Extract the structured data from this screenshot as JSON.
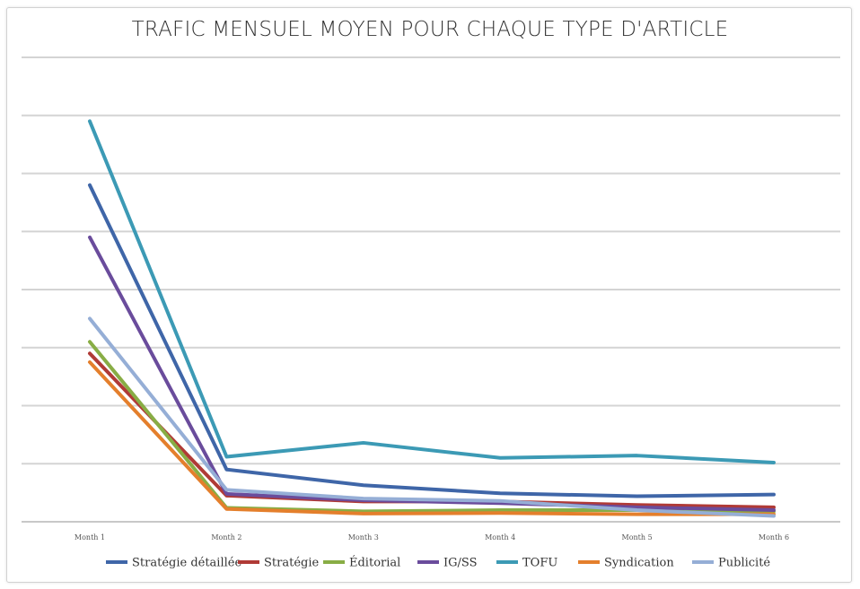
{
  "chart_data": {
    "type": "line",
    "title": "TRAFIC MENSUEL MOYEN POUR CHAQUE TYPE D'ARTICLE",
    "categories": [
      "Month 1",
      "Month 2",
      "Month 3",
      "Month 4",
      "Month 5",
      "Month 6"
    ],
    "ylim": [
      0,
      8
    ],
    "grid": true,
    "legend_position": "bottom",
    "series": [
      {
        "name": "Stratégie détaillée",
        "color": "#3f66a8",
        "values": [
          5.8,
          0.9,
          0.63,
          0.49,
          0.44,
          0.47
        ]
      },
      {
        "name": "Stratégie",
        "color": "#b03a36",
        "values": [
          2.9,
          0.45,
          0.35,
          0.35,
          0.29,
          0.25
        ]
      },
      {
        "name": "Éditorial",
        "color": "#88ad45",
        "values": [
          3.1,
          0.24,
          0.18,
          0.2,
          0.2,
          0.18
        ]
      },
      {
        "name": "IG/SS",
        "color": "#6a4c9c",
        "values": [
          4.9,
          0.48,
          0.37,
          0.32,
          0.25,
          0.2
        ]
      },
      {
        "name": "TOFU",
        "color": "#3c9ab5",
        "values": [
          6.9,
          1.12,
          1.36,
          1.1,
          1.14,
          1.02
        ]
      },
      {
        "name": "Syndication",
        "color": "#e47f2c",
        "values": [
          2.75,
          0.22,
          0.14,
          0.15,
          0.13,
          0.13
        ]
      },
      {
        "name": "Publicité",
        "color": "#95aed6",
        "values": [
          3.5,
          0.55,
          0.4,
          0.36,
          0.2,
          0.1
        ]
      }
    ]
  }
}
